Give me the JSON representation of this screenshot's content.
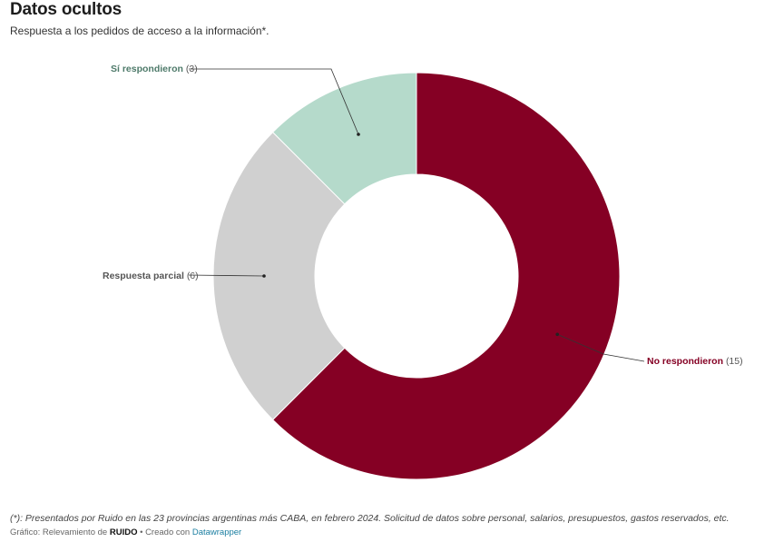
{
  "header": {
    "title": "Datos ocultos",
    "subtitle": "Respuesta a los pedidos de acceso a la información*."
  },
  "chart_data": {
    "type": "pie",
    "variant": "donut",
    "categories": [
      "No respondieron",
      "Respuesta parcial",
      "Sí respondieron"
    ],
    "values": [
      15,
      6,
      3
    ],
    "colors": [
      "#850024",
      "#d0d0d0",
      "#b5dacb"
    ],
    "label_colors": [
      "#850024",
      "#555555",
      "#4e7a6a"
    ],
    "count_labels": [
      "(15)",
      "(6)",
      "(3)"
    ]
  },
  "footer": {
    "note": "(*): Presentados por Ruido en las 23 provincias argentinas más CABA, en febrero 2024. Solicitud de datos sobre personal, salarios, presupuestos, gastos reservados, etc.",
    "source_prefix": "Gráfico: Relevamiento de ",
    "source_brand": "RUIDO",
    "source_middle": " • Creado con ",
    "source_link": "Datawrapper"
  }
}
